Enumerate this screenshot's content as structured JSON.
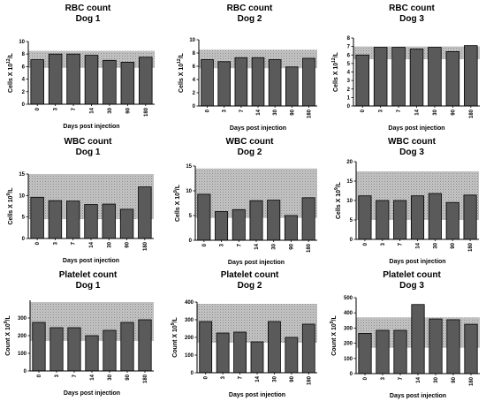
{
  "colors": {
    "bar": "#5a5a5a",
    "bar_stroke": "#000000",
    "band": "#c4c4c4",
    "axis": "#000000"
  },
  "chart_data": [
    {
      "type": "bar",
      "title": "RBC count",
      "subtitle": "Dog 1",
      "xlabel": "Days post injection",
      "ylabel": "Cells X 10",
      "ylabel_sup": "12",
      "ylabel_unit": "/L",
      "categories": [
        "0",
        "3",
        "7",
        "14",
        "30",
        "90",
        "180"
      ],
      "values": [
        7.1,
        8.0,
        8.0,
        7.8,
        7.0,
        6.7,
        7.5
      ],
      "ylim": [
        0,
        10
      ],
      "yticks": [
        "0",
        "2",
        "4",
        "6",
        "8",
        "10"
      ],
      "reference_range": [
        5.8,
        8.5
      ]
    },
    {
      "type": "bar",
      "title": "RBC count",
      "subtitle": "Dog 2",
      "xlabel": "Days post injection",
      "ylabel": "Cells X 10",
      "ylabel_sup": "12",
      "ylabel_unit": "/L",
      "categories": [
        "0",
        "3",
        "7",
        "14",
        "30",
        "90",
        "180"
      ],
      "values": [
        7.0,
        6.7,
        7.3,
        7.3,
        7.0,
        5.9,
        7.2
      ],
      "ylim": [
        0,
        10
      ],
      "yticks": [
        "0",
        "2",
        "4",
        "6",
        "8",
        "10"
      ],
      "reference_range": [
        5.7,
        8.5
      ]
    },
    {
      "type": "bar",
      "title": "RBC count",
      "subtitle": "Dog 3",
      "xlabel": "Days post injection",
      "ylabel": "Cells X 10",
      "ylabel_sup": "12",
      "ylabel_unit": "/L",
      "categories": [
        "0",
        "3",
        "7",
        "14",
        "30",
        "90",
        "180"
      ],
      "values": [
        6.0,
        6.9,
        6.9,
        6.7,
        6.9,
        6.4,
        7.1
      ],
      "ylim": [
        0,
        8
      ],
      "yticks": [
        "0",
        "1",
        "2",
        "3",
        "4",
        "5",
        "6",
        "7",
        "8"
      ],
      "reference_range": [
        5.5,
        7.0
      ]
    },
    {
      "type": "bar",
      "title": "WBC  count",
      "subtitle": "Dog 1",
      "xlabel": "Days post injection",
      "ylabel": "Cells X 10",
      "ylabel_sup": "9",
      "ylabel_unit": "/L",
      "categories": [
        "0",
        "3",
        "7",
        "14",
        "30",
        "90",
        "180"
      ],
      "values": [
        9.6,
        8.8,
        8.7,
        7.9,
        8.0,
        6.8,
        12.0
      ],
      "ylim": [
        0,
        15
      ],
      "yticks": [
        "0",
        "5",
        "10",
        "15"
      ],
      "reference_range": [
        4.5,
        15.0
      ]
    },
    {
      "type": "bar",
      "title": "WBC  count",
      "subtitle": "Dog 2",
      "xlabel": "Days post injection",
      "ylabel": "Cells X 10",
      "ylabel_sup": "9",
      "ylabel_unit": "/L",
      "categories": [
        "0",
        "3",
        "7",
        "14",
        "30",
        "90",
        "180"
      ],
      "values": [
        9.3,
        5.8,
        6.2,
        8.0,
        8.1,
        5.0,
        8.6
      ],
      "ylim": [
        0,
        15
      ],
      "yticks": [
        "0",
        "5",
        "10",
        "15"
      ],
      "reference_range": [
        4.5,
        14.5
      ]
    },
    {
      "type": "bar",
      "title": "WBC  count",
      "subtitle": "Dog 3",
      "xlabel": "Days post injection",
      "ylabel": "Cells X 10",
      "ylabel_sup": "9",
      "ylabel_unit": "/L",
      "categories": [
        "0",
        "3",
        "7",
        "14",
        "30",
        "90",
        "180"
      ],
      "values": [
        11.2,
        10.0,
        10.0,
        11.2,
        11.8,
        9.5,
        11.4
      ],
      "ylim": [
        0,
        20
      ],
      "yticks": [
        "0",
        "5",
        "10",
        "15",
        "20"
      ],
      "reference_range": [
        5.0,
        17.5
      ]
    },
    {
      "type": "bar",
      "title": "Platelet count",
      "subtitle": "Dog 1",
      "xlabel": "Days post injection",
      "ylabel": "Count X 10",
      "ylabel_sup": "9",
      "ylabel_unit": "/L",
      "categories": [
        "0",
        "3",
        "7",
        "14",
        "30",
        "90",
        "180"
      ],
      "values": [
        275,
        245,
        245,
        200,
        230,
        275,
        290
      ],
      "ylim": [
        0,
        400
      ],
      "yticks": [
        "0",
        "100",
        "200",
        "300"
      ],
      "reference_range": [
        170,
        390
      ]
    },
    {
      "type": "bar",
      "title": "Platelet count",
      "subtitle": "Dog 2",
      "xlabel": "Days post injection",
      "ylabel": "Count X 10",
      "ylabel_sup": "9",
      "ylabel_unit": "/L",
      "categories": [
        "0",
        "3",
        "7",
        "14",
        "30",
        "90",
        "180"
      ],
      "values": [
        290,
        225,
        230,
        175,
        290,
        200,
        275
      ],
      "ylim": [
        0,
        400
      ],
      "yticks": [
        "0",
        "100",
        "200",
        "300",
        "400"
      ],
      "reference_range": [
        170,
        390
      ]
    },
    {
      "type": "bar",
      "title": "Platelet count",
      "subtitle": "Dog 3",
      "xlabel": "Days post injection",
      "ylabel": "Count X 10",
      "ylabel_sup": "9",
      "ylabel_unit": "/L",
      "categories": [
        "0",
        "3",
        "7",
        "14",
        "30",
        "90",
        "180"
      ],
      "values": [
        265,
        285,
        285,
        455,
        360,
        355,
        325
      ],
      "ylim": [
        0,
        500
      ],
      "yticks": [
        "0",
        "100",
        "200",
        "300",
        "400",
        "500"
      ],
      "reference_range": [
        170,
        370
      ]
    }
  ]
}
